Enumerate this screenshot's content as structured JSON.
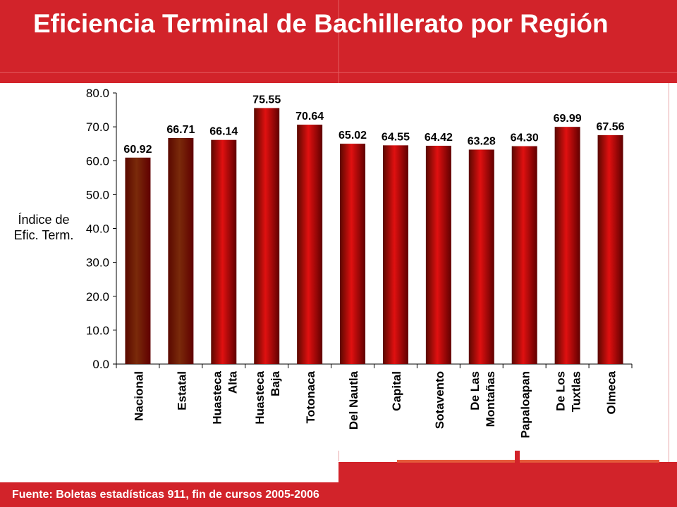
{
  "slide": {
    "title": "Eficiencia Terminal de  Bachillerato por Región",
    "source": "Fuente: Boletas estadísticas 911, fin de cursos 2005-2006",
    "colors": {
      "header": "#d2232a",
      "bar_national_state": "#7a2a0a",
      "bar_region": "#e01010",
      "title_text": "#ffffff"
    }
  },
  "chart_data": {
    "type": "bar",
    "title": "",
    "xlabel": "",
    "ylabel": "Índice de Efic. Term.",
    "ylabel_lines": [
      "Índice de",
      "Efic. Term."
    ],
    "ylim": [
      0,
      80
    ],
    "yticks": [
      "0.0",
      "10.0",
      "20.0",
      "30.0",
      "40.0",
      "50.0",
      "60.0",
      "70.0",
      "80.0"
    ],
    "grid": false,
    "legend": "none",
    "categories": [
      "Nacional",
      "Estatal",
      "Huasteca Alta",
      "Huasteca Baja",
      "Totonaca",
      "Del Nautla",
      "Capital",
      "Sotavento",
      "De Las Montañas",
      "Papaloapan",
      "De Los Tuxtlas",
      "Olmeca"
    ],
    "category_label_lines": [
      [
        "Nacional"
      ],
      [
        "Estatal"
      ],
      [
        "Huasteca",
        "Alta"
      ],
      [
        "Huasteca",
        "Baja"
      ],
      [
        "Totonaca"
      ],
      [
        "Del Nautla"
      ],
      [
        "Capital"
      ],
      [
        "Sotavento"
      ],
      [
        "De Las",
        "Montañas"
      ],
      [
        "Papaloapan"
      ],
      [
        "De Los",
        "Tuxtlas"
      ],
      [
        "Olmeca"
      ]
    ],
    "values": [
      60.92,
      66.71,
      66.14,
      75.55,
      70.64,
      65.02,
      64.55,
      64.42,
      63.28,
      64.3,
      69.99,
      67.56
    ],
    "value_labels": [
      "60.92",
      "66.71",
      "66.14",
      "75.55",
      "70.64",
      "65.02",
      "64.55",
      "64.42",
      "63.28",
      "64.30",
      "69.99",
      "67.56"
    ],
    "bar_groups": [
      "reference",
      "reference",
      "region",
      "region",
      "region",
      "region",
      "region",
      "region",
      "region",
      "region",
      "region",
      "region"
    ]
  }
}
